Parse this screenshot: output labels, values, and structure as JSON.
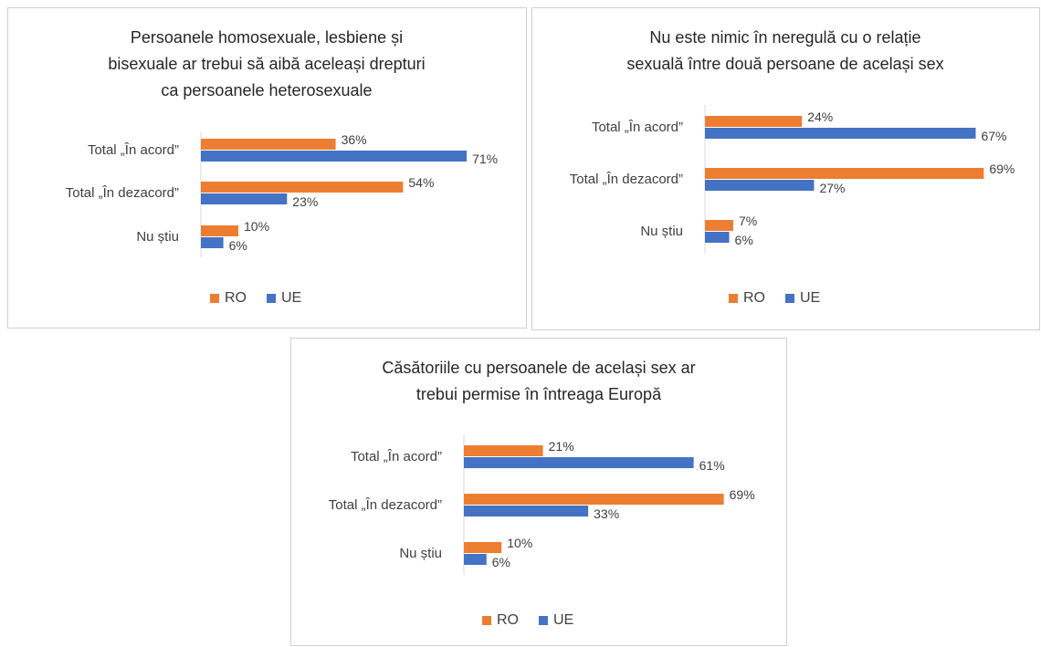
{
  "chart_data": [
    {
      "type": "bar",
      "orientation": "horizontal",
      "title": [
        "Persoanele homosexuale, lesbiene și",
        "bisexuale ar trebui să aibă aceleași drepturi",
        "ca persoanele heterosexuale"
      ],
      "categories": [
        "Total „În acord”",
        "Total „În dezacord”",
        "Nu știu"
      ],
      "xlim": [
        0,
        80
      ],
      "series": [
        {
          "name": "RO",
          "color": "#ed7d31",
          "values": [
            36,
            54,
            10
          ],
          "value_labels": [
            "36%",
            "54%",
            "10%"
          ]
        },
        {
          "name": "UE",
          "color": "#4472c4",
          "values": [
            71,
            23,
            6
          ],
          "value_labels": [
            "71%",
            "23%",
            "6%"
          ]
        }
      ],
      "legend": "bottom"
    },
    {
      "type": "bar",
      "orientation": "horizontal",
      "title": [
        "Nu este nimic în neregulă cu o relație",
        "sexuală între două persoane de același sex"
      ],
      "categories": [
        "Total „În acord”",
        "Total „În dezacord”",
        "Nu știu"
      ],
      "xlim": [
        0,
        80
      ],
      "series": [
        {
          "name": "RO",
          "color": "#ed7d31",
          "values": [
            24,
            69,
            7
          ],
          "value_labels": [
            "24%",
            "69%",
            "7%"
          ]
        },
        {
          "name": "UE",
          "color": "#4472c4",
          "values": [
            67,
            27,
            6
          ],
          "value_labels": [
            "67%",
            "27%",
            "6%"
          ]
        }
      ],
      "legend": "bottom"
    },
    {
      "type": "bar",
      "orientation": "horizontal",
      "title": [
        "Căsătoriile cu persoanele de același sex ar",
        "trebui permise în întreaga Europă"
      ],
      "categories": [
        "Total „În acord”",
        "Total „În dezacord”",
        "Nu știu"
      ],
      "xlim": [
        0,
        80
      ],
      "series": [
        {
          "name": "RO",
          "color": "#ed7d31",
          "values": [
            21,
            69,
            10
          ],
          "value_labels": [
            "21%",
            "69%",
            "10%"
          ]
        },
        {
          "name": "UE",
          "color": "#4472c4",
          "values": [
            61,
            33,
            6
          ],
          "value_labels": [
            "61%",
            "33%",
            "6%"
          ]
        }
      ],
      "legend": "bottom"
    }
  ]
}
